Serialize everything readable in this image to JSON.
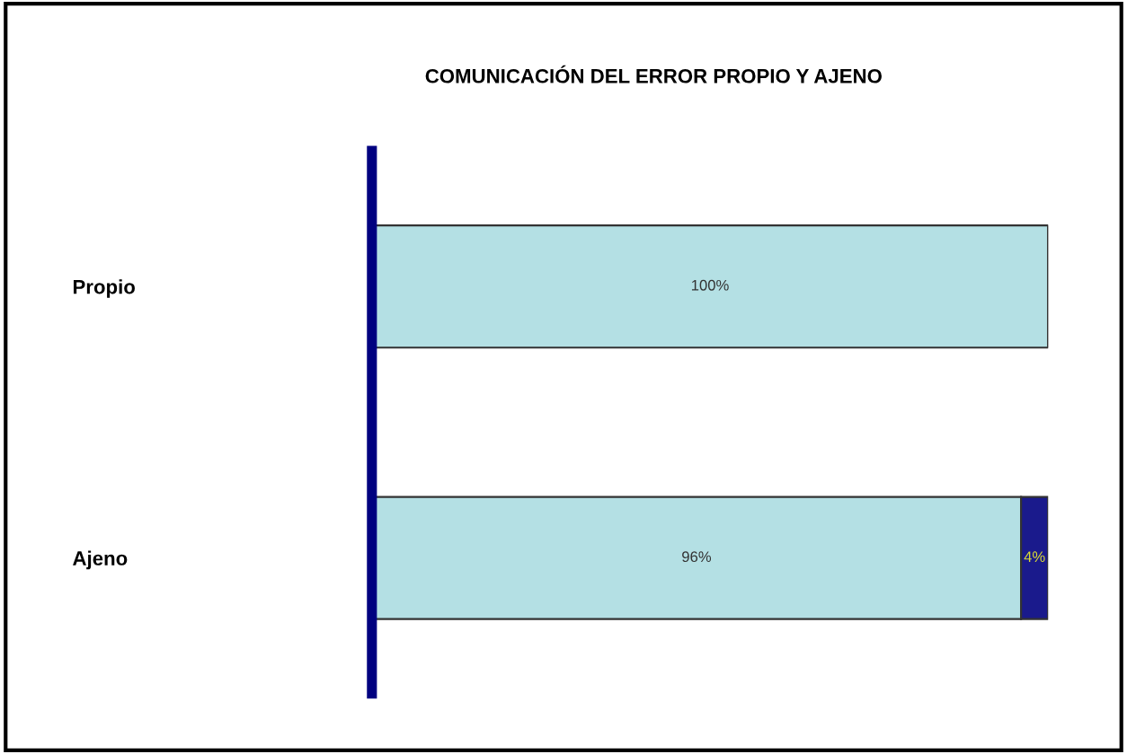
{
  "chart_data": {
    "type": "bar",
    "orientation": "horizontal",
    "stacked": true,
    "title": "COMUNICACIÓN DEL ERROR PROPIO Y AJENO",
    "categories": [
      "Propio",
      "Ajeno"
    ],
    "series": [
      {
        "color": "#b4e0e4",
        "values": [
          100,
          96
        ],
        "value_labels": [
          "100%",
          "96%"
        ]
      },
      {
        "color": "#1a1a8c",
        "values": [
          null,
          4
        ],
        "value_labels": [
          null,
          "4%"
        ]
      }
    ]
  }
}
